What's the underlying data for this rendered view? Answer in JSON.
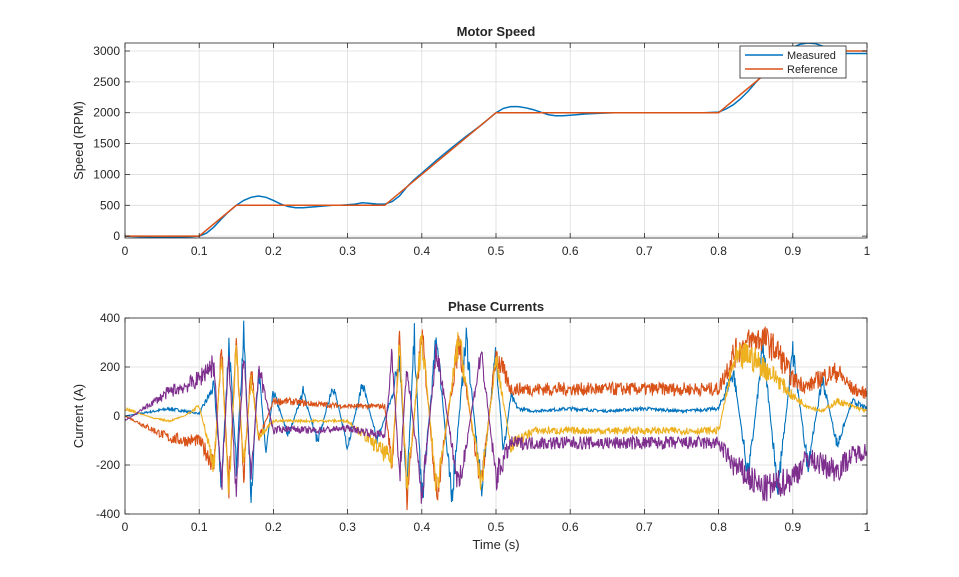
{
  "colors": {
    "blue": "#0072BD",
    "orange": "#D95319",
    "yellow": "#EDB120",
    "purple": "#7E2F8E",
    "grid": "#dcdcdc",
    "axis": "#262626"
  },
  "chart_data": [
    {
      "type": "line",
      "title": "Motor Speed",
      "xlabel": "",
      "ylabel": "Speed (RPM)",
      "xlim": [
        0,
        1
      ],
      "ylim": [
        -30,
        3130
      ],
      "xticks": [
        "0",
        "0.1",
        "0.2",
        "0.3",
        "0.4",
        "0.5",
        "0.6",
        "0.7",
        "0.8",
        "0.9",
        "1"
      ],
      "xtick_values": [
        0,
        0.1,
        0.2,
        0.3,
        0.4,
        0.5,
        0.6,
        0.7,
        0.8,
        0.9,
        1
      ],
      "yticks": [
        "0",
        "500",
        "1000",
        "1500",
        "2000",
        "2500",
        "3000"
      ],
      "ytick_values": [
        0,
        500,
        1000,
        1500,
        2000,
        2500,
        3000
      ],
      "grid": true,
      "legend": "top-right",
      "series": [
        {
          "name": "Measured",
          "color": "#0072BD",
          "x": [
            0,
            0.02,
            0.04,
            0.06,
            0.08,
            0.1,
            0.11,
            0.12,
            0.13,
            0.14,
            0.15,
            0.16,
            0.17,
            0.18,
            0.19,
            0.2,
            0.21,
            0.22,
            0.23,
            0.24,
            0.25,
            0.26,
            0.27,
            0.28,
            0.29,
            0.3,
            0.31,
            0.32,
            0.33,
            0.34,
            0.35,
            0.36,
            0.37,
            0.38,
            0.39,
            0.4,
            0.42,
            0.44,
            0.46,
            0.48,
            0.5,
            0.51,
            0.52,
            0.53,
            0.54,
            0.55,
            0.56,
            0.57,
            0.58,
            0.59,
            0.6,
            0.62,
            0.64,
            0.66,
            0.68,
            0.7,
            0.72,
            0.74,
            0.76,
            0.78,
            0.8,
            0.81,
            0.82,
            0.83,
            0.84,
            0.85,
            0.86,
            0.87,
            0.88,
            0.89,
            0.9,
            0.91,
            0.92,
            0.93,
            0.94,
            0.95,
            0.96,
            0.97,
            0.98,
            0.99,
            1.0
          ],
          "y": [
            0,
            -10,
            -20,
            -20,
            -15,
            0,
            50,
            150,
            280,
            400,
            500,
            580,
            630,
            650,
            630,
            580,
            520,
            480,
            460,
            460,
            470,
            480,
            490,
            500,
            500,
            510,
            520,
            540,
            530,
            520,
            520,
            560,
            650,
            800,
            920,
            1020,
            1230,
            1430,
            1620,
            1800,
            2000,
            2070,
            2100,
            2100,
            2080,
            2050,
            2010,
            1970,
            1950,
            1950,
            1960,
            1980,
            1990,
            2000,
            2000,
            2000,
            2000,
            2000,
            2000,
            2000,
            2010,
            2060,
            2130,
            2230,
            2350,
            2490,
            2620,
            2760,
            2880,
            2980,
            3060,
            3110,
            3130,
            3120,
            3080,
            3030,
            2990,
            2960,
            2960,
            2960,
            2960
          ]
        },
        {
          "name": "Reference",
          "color": "#D95319",
          "x": [
            0,
            0.1,
            0.15,
            0.35,
            0.5,
            0.8,
            0.9,
            1.0
          ],
          "y": [
            0,
            0,
            500,
            500,
            2000,
            2000,
            3000,
            3000
          ]
        }
      ]
    },
    {
      "type": "line",
      "title": "Phase Currents",
      "xlabel": "Time (s)",
      "ylabel": "Current (A)",
      "xlim": [
        0,
        1
      ],
      "ylim": [
        -400,
        400
      ],
      "xticks": [
        "0",
        "0.1",
        "0.2",
        "0.3",
        "0.4",
        "0.5",
        "0.6",
        "0.7",
        "0.8",
        "0.9",
        "1"
      ],
      "xtick_values": [
        0,
        0.1,
        0.2,
        0.3,
        0.4,
        0.5,
        0.6,
        0.7,
        0.8,
        0.9,
        1
      ],
      "yticks": [
        "400",
        "200",
        "0",
        "-200",
        "-400"
      ],
      "ytick_values": [
        400,
        200,
        0,
        -200,
        -400
      ],
      "grid": true,
      "series": [
        {
          "color": "#0072BD",
          "x": [
            0,
            0.02,
            0.04,
            0.06,
            0.08,
            0.1,
            0.12,
            0.13,
            0.14,
            0.15,
            0.16,
            0.17,
            0.18,
            0.19,
            0.2,
            0.22,
            0.24,
            0.26,
            0.28,
            0.3,
            0.32,
            0.34,
            0.36,
            0.37,
            0.38,
            0.39,
            0.4,
            0.42,
            0.44,
            0.46,
            0.48,
            0.5,
            0.51,
            0.52,
            0.53,
            0.55,
            0.6,
            0.65,
            0.7,
            0.75,
            0.8,
            0.82,
            0.84,
            0.86,
            0.88,
            0.9,
            0.92,
            0.94,
            0.96,
            0.98,
            1.0
          ],
          "y": [
            0,
            10,
            20,
            30,
            20,
            10,
            120,
            -280,
            300,
            -200,
            330,
            -320,
            200,
            -150,
            100,
            -80,
            100,
            -110,
            130,
            -120,
            130,
            -100,
            80,
            250,
            -300,
            320,
            -350,
            330,
            -340,
            320,
            -300,
            260,
            -150,
            80,
            30,
            20,
            30,
            20,
            30,
            20,
            30,
            180,
            -250,
            280,
            -300,
            260,
            -200,
            150,
            -120,
            60,
            30
          ]
        },
        {
          "color": "#D95319",
          "x": [
            0,
            0.02,
            0.04,
            0.06,
            0.08,
            0.1,
            0.11,
            0.12,
            0.13,
            0.14,
            0.15,
            0.16,
            0.17,
            0.18,
            0.2,
            0.22,
            0.25,
            0.3,
            0.35,
            0.36,
            0.37,
            0.38,
            0.4,
            0.42,
            0.45,
            0.48,
            0.5,
            0.52,
            0.55,
            0.6,
            0.65,
            0.7,
            0.75,
            0.8,
            0.82,
            0.84,
            0.86,
            0.88,
            0.9,
            0.92,
            0.94,
            0.96,
            0.98,
            1.0
          ],
          "y": [
            0,
            -30,
            -60,
            -90,
            -100,
            -100,
            -150,
            -200,
            280,
            -300,
            300,
            -250,
            200,
            -100,
            60,
            60,
            50,
            40,
            40,
            -200,
            300,
            -330,
            340,
            -320,
            310,
            -290,
            250,
            110,
            110,
            110,
            110,
            110,
            110,
            110,
            250,
            300,
            320,
            260,
            150,
            120,
            160,
            180,
            110,
            90
          ]
        },
        {
          "color": "#EDB120",
          "x": [
            0,
            0.02,
            0.04,
            0.06,
            0.08,
            0.1,
            0.12,
            0.13,
            0.14,
            0.15,
            0.16,
            0.17,
            0.18,
            0.2,
            0.24,
            0.3,
            0.36,
            0.37,
            0.38,
            0.4,
            0.42,
            0.45,
            0.48,
            0.5,
            0.52,
            0.55,
            0.6,
            0.7,
            0.8,
            0.82,
            0.84,
            0.86,
            0.88,
            0.9,
            0.92,
            0.94,
            0.96,
            1.0
          ],
          "y": [
            30,
            10,
            -10,
            -20,
            0,
            40,
            -200,
            250,
            -300,
            280,
            -200,
            150,
            -80,
            -20,
            -20,
            -20,
            -180,
            300,
            -300,
            330,
            -300,
            320,
            -280,
            230,
            -120,
            -60,
            -60,
            -60,
            -60,
            220,
            250,
            200,
            150,
            80,
            40,
            20,
            60,
            20
          ]
        },
        {
          "color": "#7E2F8E",
          "x": [
            0,
            0.02,
            0.04,
            0.06,
            0.08,
            0.1,
            0.11,
            0.12,
            0.13,
            0.14,
            0.15,
            0.16,
            0.17,
            0.18,
            0.2,
            0.22,
            0.25,
            0.3,
            0.35,
            0.36,
            0.37,
            0.38,
            0.4,
            0.42,
            0.45,
            0.48,
            0.5,
            0.52,
            0.55,
            0.6,
            0.7,
            0.8,
            0.82,
            0.84,
            0.86,
            0.88,
            0.9,
            0.92,
            0.94,
            0.96,
            0.98,
            1.0
          ],
          "y": [
            -20,
            20,
            60,
            100,
            120,
            150,
            190,
            210,
            -300,
            250,
            -320,
            260,
            -280,
            200,
            -60,
            -50,
            -60,
            -50,
            -80,
            250,
            -250,
            200,
            -330,
            280,
            -300,
            260,
            -250,
            -110,
            -110,
            -110,
            -110,
            -110,
            -200,
            -250,
            -300,
            -280,
            -250,
            -170,
            -200,
            -220,
            -160,
            -140
          ]
        }
      ]
    }
  ]
}
